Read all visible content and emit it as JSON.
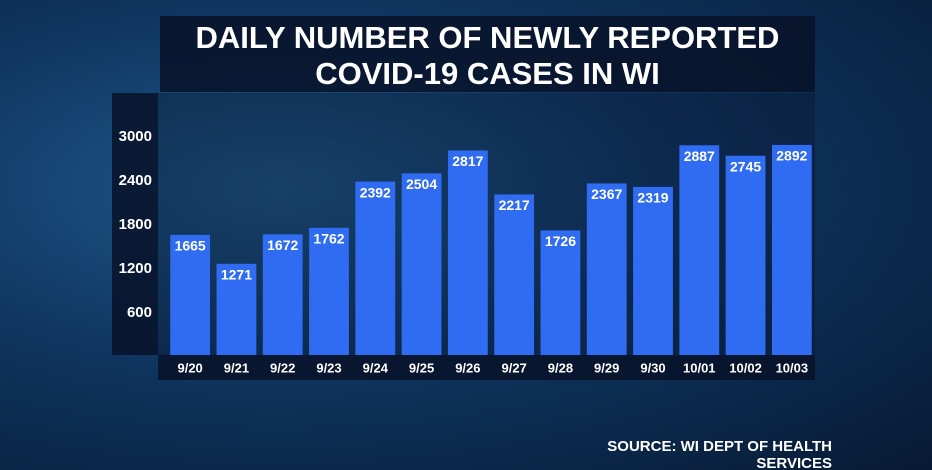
{
  "chart_data": {
    "type": "bar",
    "title": "DAILY NUMBER OF NEWLY REPORTED COVID-19 CASES IN WI",
    "source": "SOURCE: WI DEPT OF HEALTH SERVICES",
    "categories": [
      "9/20",
      "9/21",
      "9/22",
      "9/23",
      "9/24",
      "9/25",
      "9/26",
      "9/27",
      "9/28",
      "9/29",
      "9/30",
      "10/01",
      "10/02",
      "10/03"
    ],
    "values": [
      1665,
      1271,
      1672,
      1762,
      2392,
      2504,
      2817,
      2217,
      1726,
      2367,
      2319,
      2887,
      2745,
      2892
    ],
    "color": "#2f6cf2",
    "ylim": [
      0,
      3600
    ],
    "yticks": [
      600,
      1200,
      1800,
      2400,
      3000
    ],
    "grid": false
  }
}
